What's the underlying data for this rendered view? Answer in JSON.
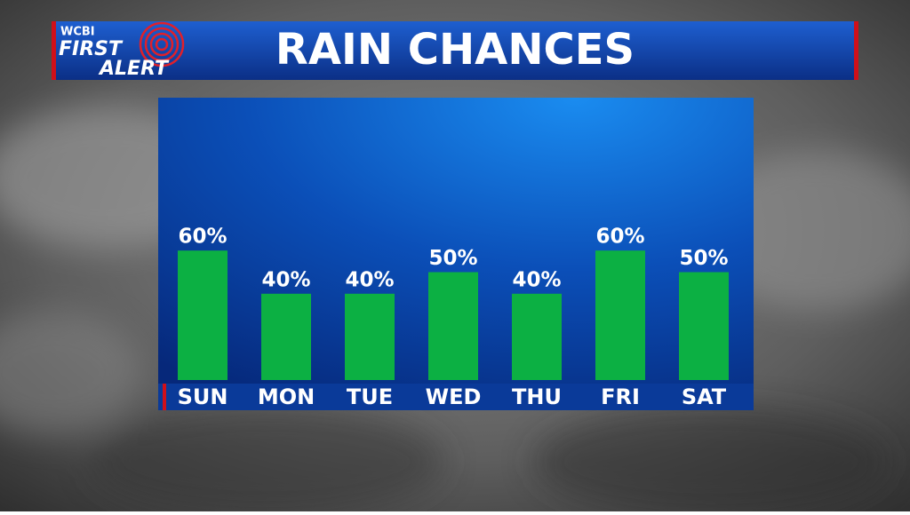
{
  "logo": {
    "station": "WCBI",
    "line1": "FIRST",
    "line2": "ALERT"
  },
  "chart_data": {
    "type": "bar",
    "title": "RAIN CHANCES",
    "categories": [
      "SUN",
      "MON",
      "TUE",
      "WED",
      "THU",
      "FRI",
      "SAT"
    ],
    "values": [
      60,
      40,
      40,
      50,
      40,
      60,
      50
    ],
    "value_labels": [
      "60%",
      "40%",
      "40%",
      "50%",
      "40%",
      "60%",
      "50%"
    ],
    "color": "#0cb043",
    "ylim": [
      0,
      100
    ]
  }
}
